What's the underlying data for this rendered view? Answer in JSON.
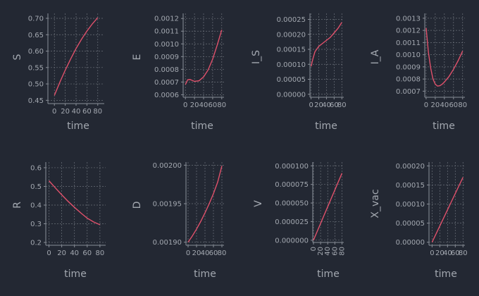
{
  "colors": {
    "background": "#232833",
    "text": "#a3a8b0",
    "grid": "#6b7079",
    "line": "#e0516b"
  },
  "chart_data": [
    {
      "type": "line",
      "xlabel": "time",
      "ylabel": "S",
      "grid": true,
      "xticks": [
        "0",
        "20",
        "40",
        "60",
        "80"
      ],
      "xlim": [
        -12,
        92
      ],
      "yticks": [
        "0.45",
        "0.50",
        "0.55",
        "0.60",
        "0.65",
        "0.70"
      ],
      "ylim": [
        0.44,
        0.715
      ],
      "series": [
        {
          "x": [
            0,
            10,
            20,
            30,
            40,
            50,
            60,
            70,
            80
          ],
          "values": [
            0.465,
            0.505,
            0.542,
            0.576,
            0.608,
            0.636,
            0.661,
            0.683,
            0.702
          ]
        }
      ]
    },
    {
      "type": "line",
      "xlabel": "time",
      "ylabel": "E",
      "grid": true,
      "xticks": [
        "0",
        "20",
        "40",
        "60",
        "80"
      ],
      "xlim": [
        -5,
        85
      ],
      "yticks": [
        "0.0006",
        "0.0007",
        "0.0008",
        "0.0009",
        "0.0010",
        "0.0011",
        "0.0012"
      ],
      "ylim": [
        0.00058,
        0.00124
      ],
      "series": [
        {
          "x": [
            0,
            5,
            10,
            20,
            30,
            40,
            50,
            60,
            70,
            80
          ],
          "values": [
            0.00068,
            0.000718,
            0.00072,
            0.000705,
            0.00071,
            0.00074,
            0.000795,
            0.00088,
            0.00099,
            0.00111
          ]
        }
      ]
    },
    {
      "type": "line",
      "xlabel": "time",
      "ylabel": "I_S",
      "grid": true,
      "xticks": [
        "0",
        "20",
        "40",
        "60",
        "80"
      ],
      "xlim": [
        -3,
        85
      ],
      "yticks": [
        "0.00000",
        "0.00005",
        "0.00010",
        "0.00015",
        "0.00020",
        "0.00025"
      ],
      "ylim": [
        -1e-05,
        0.00027
      ],
      "series": [
        {
          "x": [
            0,
            5,
            10,
            20,
            30,
            40,
            50,
            60,
            70,
            80
          ],
          "values": [
            9.3e-05,
            0.00012,
            0.000142,
            0.00016,
            0.00017,
            0.00018,
            0.00019,
            0.000205,
            0.00022,
            0.00024
          ]
        }
      ]
    },
    {
      "type": "line",
      "xlabel": "time",
      "ylabel": "I_A",
      "grid": true,
      "xticks": [
        "0",
        "20",
        "40",
        "60",
        "80"
      ],
      "xlim": [
        -3,
        85
      ],
      "yticks": [
        "0.0007",
        "0.0008",
        "0.0009",
        "0.0010",
        "0.0011",
        "0.0012",
        "0.0013"
      ],
      "ylim": [
        0.00065,
        0.00134
      ],
      "series": [
        {
          "x": [
            0,
            5,
            10,
            15,
            20,
            25,
            30,
            35,
            40,
            50,
            60,
            70,
            80
          ],
          "values": [
            0.00122,
            0.00102,
            0.00089,
            0.0008,
            0.000758,
            0.000742,
            0.000745,
            0.000757,
            0.000775,
            0.00082,
            0.00088,
            0.00095,
            0.00103
          ]
        }
      ]
    },
    {
      "type": "line",
      "xlabel": "time",
      "ylabel": "R",
      "grid": true,
      "xticks": [
        "0",
        "20",
        "40",
        "60",
        "80"
      ],
      "xlim": [
        -5,
        89
      ],
      "yticks": [
        "0.2",
        "0.3",
        "0.4",
        "0.5",
        "0.6"
      ],
      "ylim": [
        0.185,
        0.63
      ],
      "series": [
        {
          "x": [
            0,
            10,
            20,
            30,
            40,
            50,
            60,
            70,
            80
          ],
          "values": [
            0.53,
            0.492,
            0.455,
            0.42,
            0.388,
            0.358,
            0.33,
            0.31,
            0.295
          ]
        }
      ]
    },
    {
      "type": "line",
      "xlabel": "time",
      "ylabel": "D",
      "grid": true,
      "xticks": [
        "0",
        "20",
        "40",
        "60",
        "80"
      ],
      "xlim": [
        -5,
        85
      ],
      "yticks": [
        "0.00190",
        "0.00195",
        "0.00200"
      ],
      "ylim": [
        0.001896,
        0.002004
      ],
      "series": [
        {
          "x": [
            0,
            10,
            20,
            30,
            40,
            50,
            60,
            70,
            80
          ],
          "values": [
            0.0019,
            0.001908,
            0.001917,
            0.001927,
            0.001938,
            0.00195,
            0.001963,
            0.001978,
            0.001999
          ]
        }
      ]
    },
    {
      "type": "line",
      "xlabel": "time",
      "ylabel": "V",
      "grid": true,
      "xticks": [
        "0",
        "20",
        "40",
        "60",
        "80"
      ],
      "xlim": [
        -2,
        85
      ],
      "yticks": [
        "0.000000",
        "0.000025",
        "0.000050",
        "0.000075",
        "0.000100"
      ],
      "ylim": [
        -3e-06,
        0.000105
      ],
      "series": [
        {
          "x": [
            0,
            10,
            20,
            30,
            40,
            50,
            60,
            70,
            80
          ],
          "values": [
            0,
            1.13e-05,
            2.25e-05,
            3.38e-05,
            4.5e-05,
            5.63e-05,
            6.75e-05,
            7.88e-05,
            9e-05
          ]
        }
      ]
    },
    {
      "type": "line",
      "xlabel": "time",
      "ylabel": "X_vac",
      "grid": true,
      "xticks": [
        "0",
        "20",
        "40",
        "60",
        "80"
      ],
      "xlim": [
        -8,
        85
      ],
      "yticks": [
        "0.00000",
        "0.00005",
        "0.00010",
        "0.00015",
        "0.00020"
      ],
      "ylim": [
        -8e-06,
        0.00021
      ],
      "series": [
        {
          "x": [
            0,
            10,
            20,
            30,
            40,
            50,
            60,
            70,
            80
          ],
          "values": [
            0,
            2.13e-05,
            4.25e-05,
            6.38e-05,
            8.5e-05,
            0.0001063,
            0.0001275,
            0.0001488,
            0.00017
          ]
        }
      ]
    }
  ]
}
